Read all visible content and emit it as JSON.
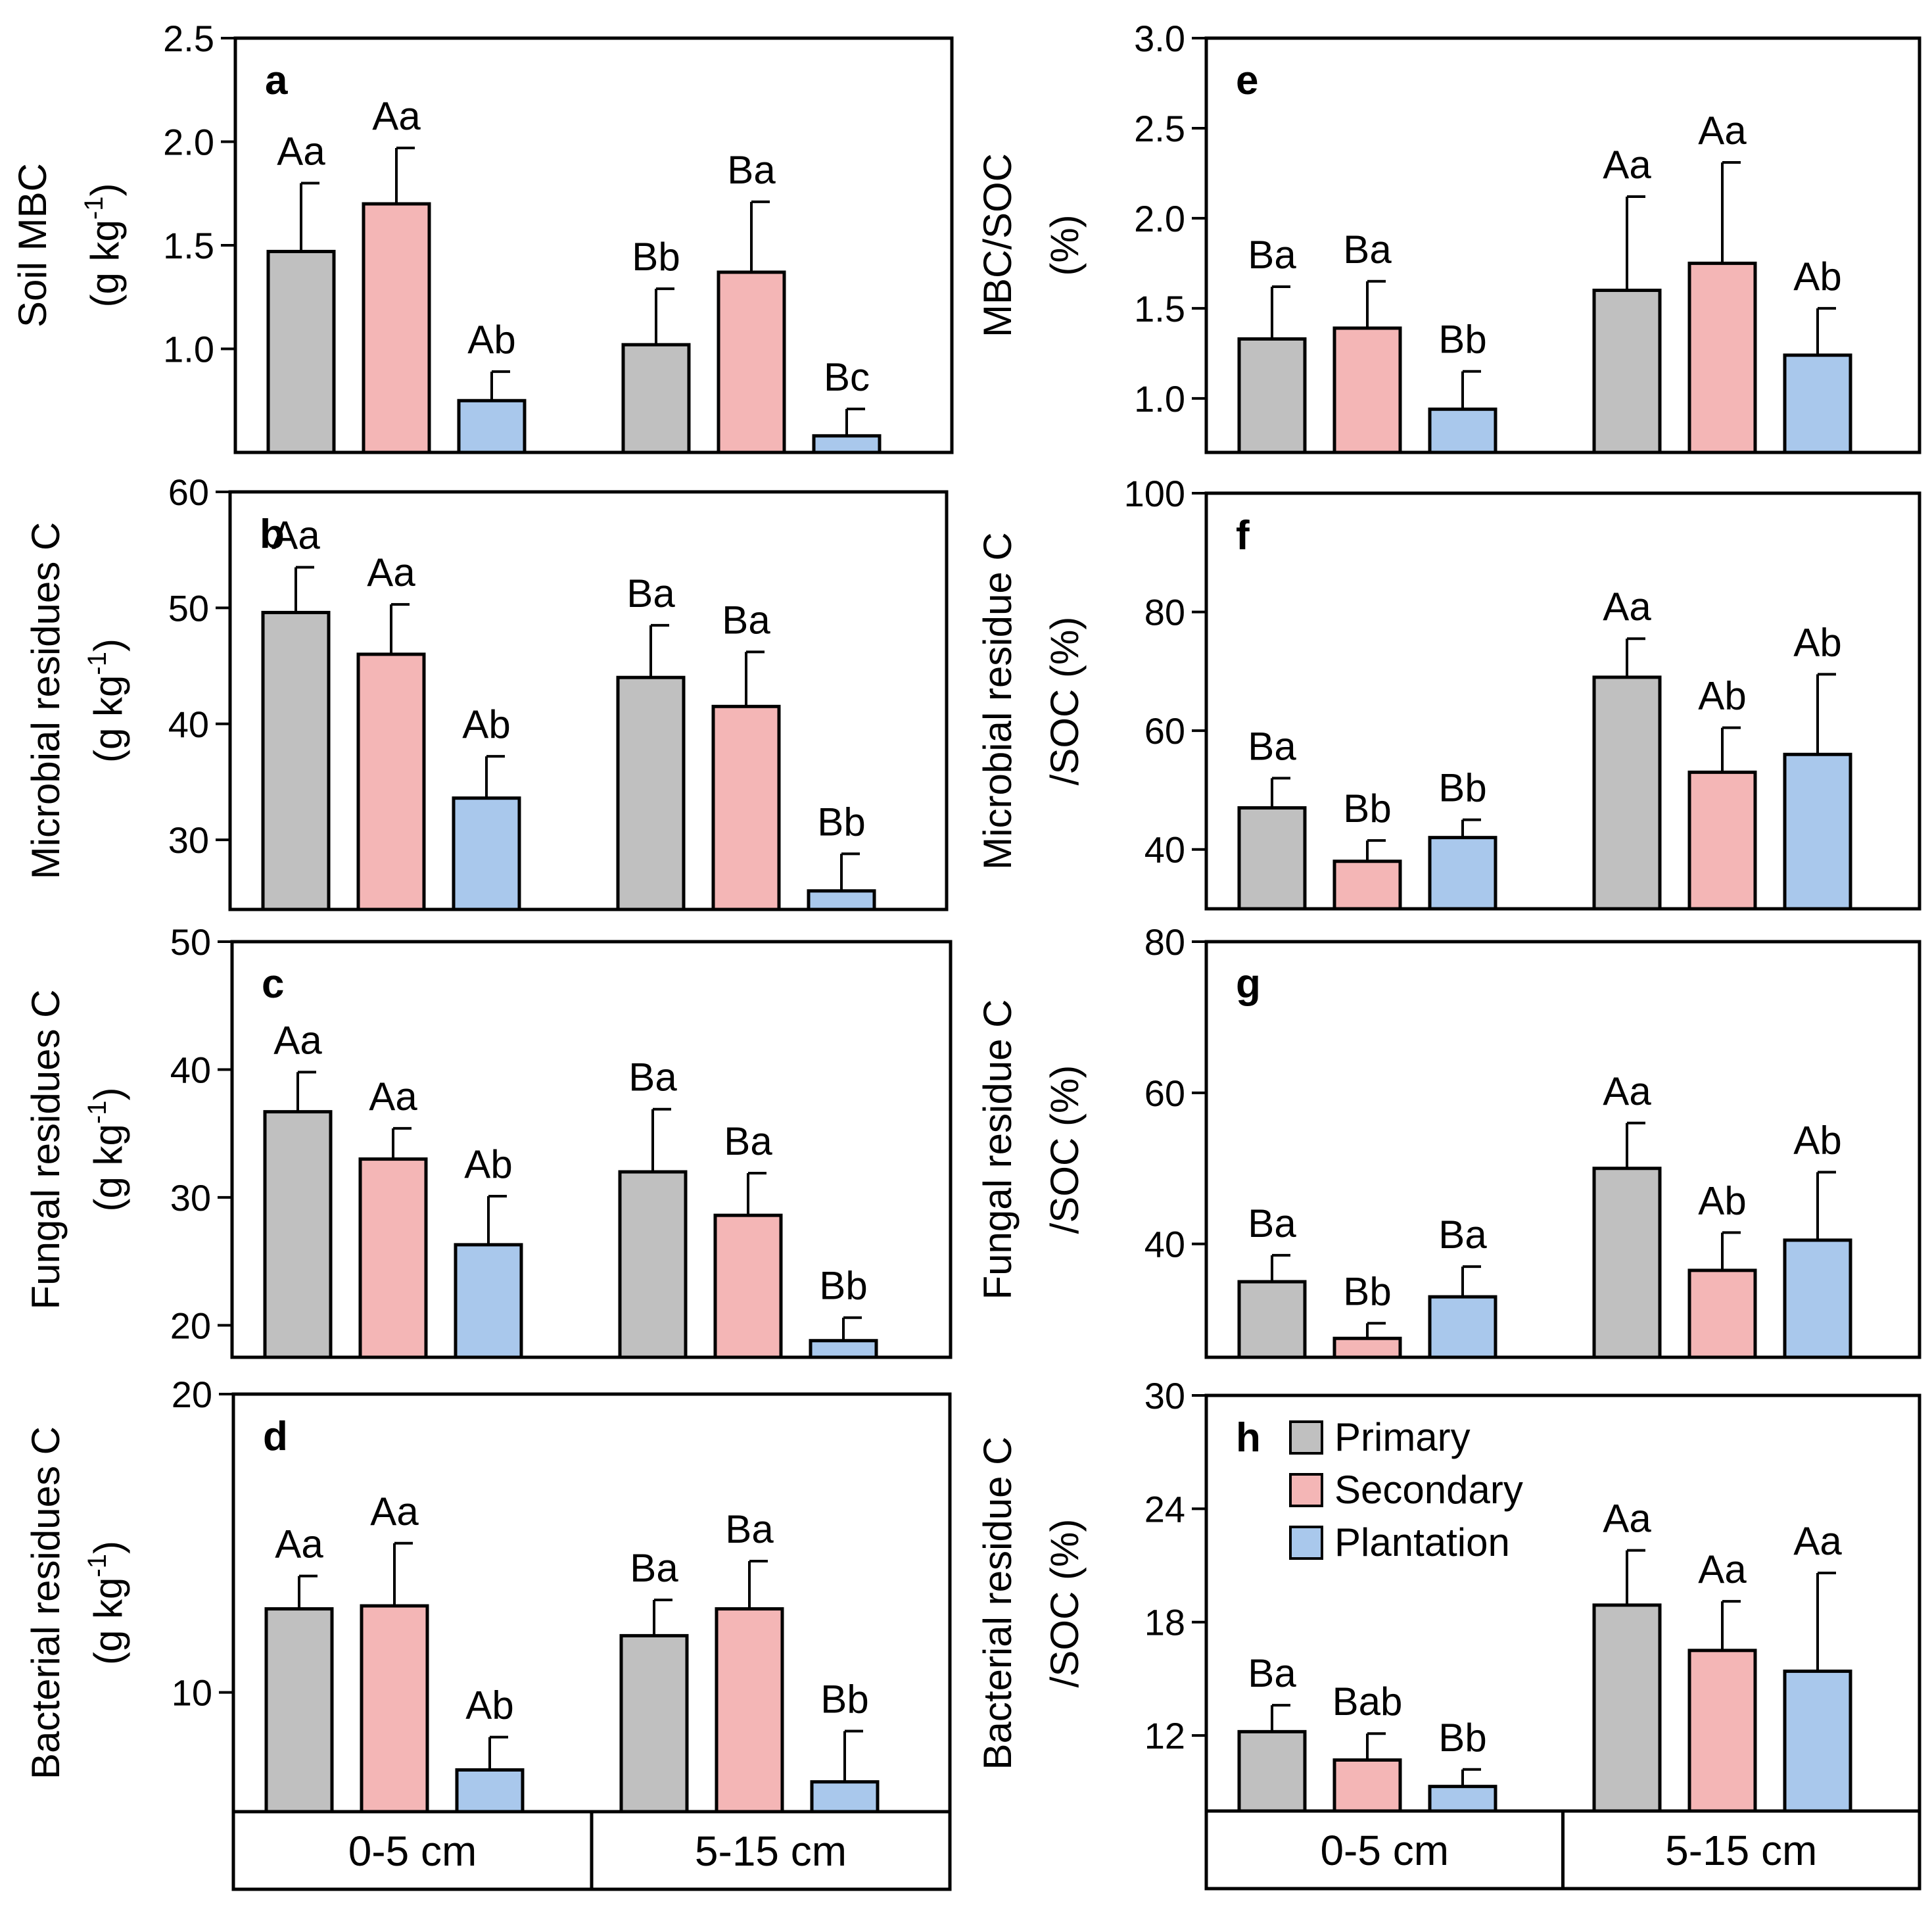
{
  "depths": [
    "0-5 cm",
    "5-15 cm"
  ],
  "legend": {
    "panel": "h",
    "items": [
      {
        "name": "Primary",
        "color": "#c0c0c0"
      },
      {
        "name": "Secondary",
        "color": "#f4b6b6"
      },
      {
        "name": "Plantation",
        "color": "#a9c8ec"
      }
    ]
  },
  "chart_data": [
    {
      "id": "a",
      "type": "bar",
      "letter": "a",
      "ylabel": [
        "Soil MBC",
        "(g kg",
        "-1",
        ")"
      ],
      "ylim": [
        0.5,
        2.5
      ],
      "yticks": [
        1.0,
        1.5,
        2.0,
        2.5
      ],
      "tick_decimals": 1,
      "categories": [
        "0-5 cm",
        "5-15 cm"
      ],
      "series": [
        {
          "name": "Primary",
          "values": [
            1.47,
            1.02
          ],
          "errors": [
            0.33,
            0.27
          ],
          "letters": [
            "Aa",
            "Bb"
          ]
        },
        {
          "name": "Secondary",
          "values": [
            1.7,
            1.37
          ],
          "errors": [
            0.27,
            0.34
          ],
          "letters": [
            "Aa",
            "Ba"
          ]
        },
        {
          "name": "Plantation",
          "values": [
            0.75,
            0.58
          ],
          "errors": [
            0.14,
            0.13
          ],
          "letters": [
            "Ab",
            "Bc"
          ]
        }
      ]
    },
    {
      "id": "b",
      "type": "bar",
      "letter": "b",
      "ylabel": [
        "Microbial residues C",
        "(g kg",
        "-1",
        ")"
      ],
      "ylim": [
        24,
        60
      ],
      "yticks": [
        30,
        40,
        50,
        60
      ],
      "tick_decimals": 0,
      "categories": [
        "0-5 cm",
        "5-15 cm"
      ],
      "series": [
        {
          "name": "Primary",
          "values": [
            49.6,
            44.0
          ],
          "errors": [
            3.9,
            4.5
          ],
          "letters": [
            "Aa",
            "Ba"
          ]
        },
        {
          "name": "Secondary",
          "values": [
            46.0,
            41.5
          ],
          "errors": [
            4.3,
            4.7
          ],
          "letters": [
            "Aa",
            "Ba"
          ]
        },
        {
          "name": "Plantation",
          "values": [
            33.6,
            25.6
          ],
          "errors": [
            3.6,
            3.2
          ],
          "letters": [
            "Ab",
            "Bb"
          ]
        }
      ]
    },
    {
      "id": "c",
      "type": "bar",
      "letter": "c",
      "ylabel": [
        "Fungal residues C",
        "(g kg",
        "-1",
        ")"
      ],
      "ylim": [
        17.5,
        50
      ],
      "yticks": [
        20,
        30,
        40,
        50
      ],
      "tick_decimals": 0,
      "categories": [
        "0-5 cm",
        "5-15 cm"
      ],
      "series": [
        {
          "name": "Primary",
          "values": [
            36.7,
            32.0
          ],
          "errors": [
            3.1,
            4.9
          ],
          "letters": [
            "Aa",
            "Ba"
          ]
        },
        {
          "name": "Secondary",
          "values": [
            33.0,
            28.6
          ],
          "errors": [
            2.4,
            3.3
          ],
          "letters": [
            "Aa",
            "Ba"
          ]
        },
        {
          "name": "Plantation",
          "values": [
            26.3,
            18.8
          ],
          "errors": [
            3.8,
            1.8
          ],
          "letters": [
            "Ab",
            "Bb"
          ]
        }
      ]
    },
    {
      "id": "d",
      "type": "bar",
      "letter": "d",
      "ylabel": [
        "Bacterial residues C",
        "(g kg",
        "-1",
        ")"
      ],
      "ylim": [
        6,
        20
      ],
      "yticks": [
        10,
        20
      ],
      "tick_decimals": 0,
      "categories": [
        "0-5 cm",
        "5-15 cm"
      ],
      "series": [
        {
          "name": "Primary",
          "values": [
            12.8,
            11.9
          ],
          "errors": [
            1.1,
            1.2
          ],
          "letters": [
            "Aa",
            "Ba"
          ]
        },
        {
          "name": "Secondary",
          "values": [
            12.9,
            12.8
          ],
          "errors": [
            2.1,
            1.6
          ],
          "letters": [
            "Aa",
            "Ba"
          ]
        },
        {
          "name": "Plantation",
          "values": [
            7.4,
            7.0
          ],
          "errors": [
            1.1,
            1.7
          ],
          "letters": [
            "Ab",
            "Bb"
          ]
        }
      ]
    },
    {
      "id": "e",
      "type": "bar",
      "letter": "e",
      "ylabel": [
        "MBC/SOC",
        "(%)"
      ],
      "ylim": [
        0.7,
        3.0
      ],
      "yticks": [
        1.0,
        1.5,
        2.0,
        2.5,
        3.0
      ],
      "tick_decimals": 1,
      "categories": [
        "0-5 cm",
        "5-15 cm"
      ],
      "series": [
        {
          "name": "Primary",
          "values": [
            1.33,
            1.6
          ],
          "errors": [
            0.29,
            0.52
          ],
          "letters": [
            "Ba",
            "Aa"
          ]
        },
        {
          "name": "Secondary",
          "values": [
            1.39,
            1.75
          ],
          "errors": [
            0.26,
            0.56
          ],
          "letters": [
            "Ba",
            "Aa"
          ]
        },
        {
          "name": "Plantation",
          "values": [
            0.94,
            1.24
          ],
          "errors": [
            0.21,
            0.26
          ],
          "letters": [
            "Bb",
            "Ab"
          ]
        }
      ]
    },
    {
      "id": "f",
      "type": "bar",
      "letter": "f",
      "ylabel": [
        "Microbial residue C",
        "/SOC (%)"
      ],
      "ylim": [
        30,
        100
      ],
      "yticks": [
        40,
        60,
        80,
        100
      ],
      "tick_decimals": 0,
      "categories": [
        "0-5 cm",
        "5-15 cm"
      ],
      "series": [
        {
          "name": "Primary",
          "values": [
            47.0,
            69.0
          ],
          "errors": [
            5.0,
            6.5
          ],
          "letters": [
            "Ba",
            "Aa"
          ]
        },
        {
          "name": "Secondary",
          "values": [
            38.0,
            53.0
          ],
          "errors": [
            3.5,
            7.5
          ],
          "letters": [
            "Bb",
            "Ab"
          ]
        },
        {
          "name": "Plantation",
          "values": [
            42.0,
            56.0
          ],
          "errors": [
            3.0,
            13.5
          ],
          "letters": [
            "Bb",
            "Ab"
          ]
        }
      ]
    },
    {
      "id": "g",
      "type": "bar",
      "letter": "g",
      "ylabel": [
        "Fungal residue C",
        "/SOC (%)"
      ],
      "ylim": [
        25,
        80
      ],
      "yticks": [
        40,
        60,
        80
      ],
      "tick_decimals": 0,
      "categories": [
        "0-5 cm",
        "5-15 cm"
      ],
      "series": [
        {
          "name": "Primary",
          "values": [
            35.0,
            50.0
          ],
          "errors": [
            3.5,
            6.0
          ],
          "letters": [
            "Ba",
            "Aa"
          ]
        },
        {
          "name": "Secondary",
          "values": [
            27.5,
            36.5
          ],
          "errors": [
            2.0,
            5.0
          ],
          "letters": [
            "Bb",
            "Ab"
          ]
        },
        {
          "name": "Plantation",
          "values": [
            33.0,
            40.5
          ],
          "errors": [
            4.0,
            9.0
          ],
          "letters": [
            "Ba",
            "Ab"
          ]
        }
      ]
    },
    {
      "id": "h",
      "type": "bar",
      "letter": "h",
      "ylabel": [
        "Bacterial residue C",
        "/SOC (%)"
      ],
      "ylim": [
        8,
        30
      ],
      "yticks": [
        12,
        18,
        24,
        30
      ],
      "tick_decimals": 0,
      "categories": [
        "0-5 cm",
        "5-15 cm"
      ],
      "series": [
        {
          "name": "Primary",
          "values": [
            12.2,
            18.9
          ],
          "errors": [
            1.4,
            2.9
          ],
          "letters": [
            "Ba",
            "Aa"
          ]
        },
        {
          "name": "Secondary",
          "values": [
            10.7,
            16.5
          ],
          "errors": [
            1.4,
            2.6
          ],
          "letters": [
            "Bab",
            "Aa"
          ]
        },
        {
          "name": "Plantation",
          "values": [
            9.3,
            15.4
          ],
          "errors": [
            0.9,
            5.2
          ],
          "letters": [
            "Bb",
            "Aa"
          ]
        }
      ]
    }
  ]
}
